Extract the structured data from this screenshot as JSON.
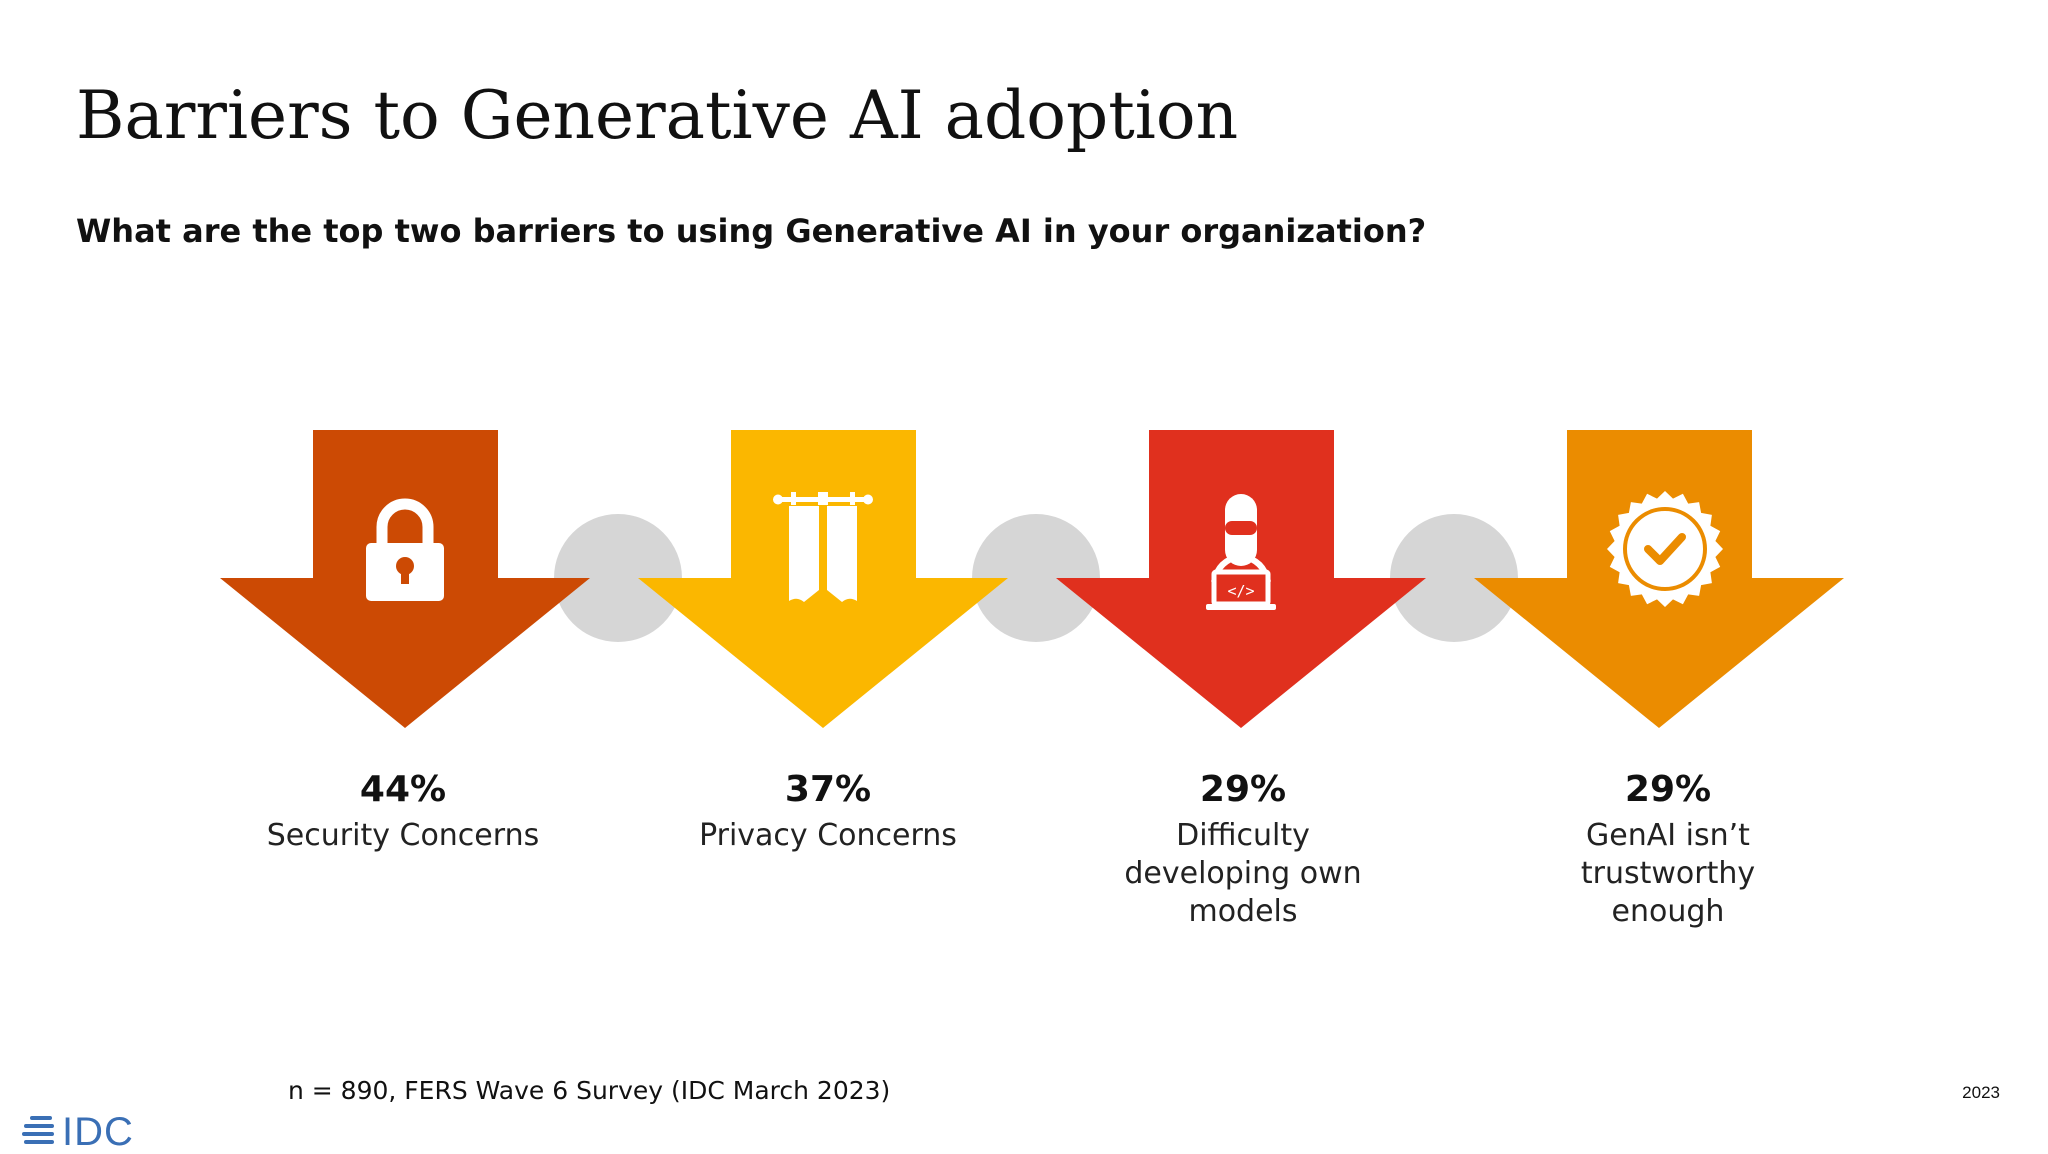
{
  "title": "Barriers to Generative AI adoption",
  "subtitle": "What are the top two barriers to using Generative AI in your organization?",
  "colors": {
    "connector": "#d6d6d6",
    "icon": "#ffffff",
    "logo": "#3a6fb5"
  },
  "barriers": [
    {
      "percent": "44%",
      "label_lines": [
        "Security Concerns"
      ],
      "color": "#cc4a04",
      "icon": "padlock-icon"
    },
    {
      "percent": "37%",
      "label_lines": [
        "Privacy Concerns"
      ],
      "color": "#fbb700",
      "icon": "curtain-icon"
    },
    {
      "percent": "29%",
      "label_lines": [
        "Difficulty",
        "developing own",
        "models"
      ],
      "color": "#e0301e",
      "icon": "coder-icon"
    },
    {
      "percent": "29%",
      "label_lines": [
        "GenAI isn’t",
        "trustworthy",
        "enough"
      ],
      "color": "#eb8c00",
      "icon": "verified-badge-icon"
    }
  ],
  "source": "n = 890, FERS Wave 6 Survey (IDC March 2023)",
  "year": "2023",
  "logo_text": "IDC"
}
